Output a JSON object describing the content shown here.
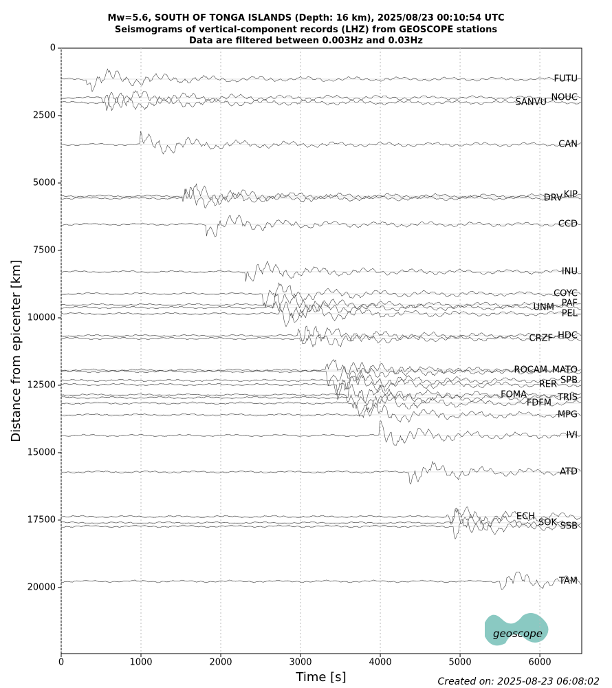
{
  "chart_data": {
    "type": "seismogram",
    "title": [
      "Mw=5.6, SOUTH OF TONGA ISLANDS (Depth: 16 km), 2025/08/23 00:10:54 UTC",
      "Seismograms of vertical-component records (LHZ) from GEOSCOPE stations",
      "Data are filtered between 0.003Hz and 0.03Hz"
    ],
    "x_label": "Time [s]",
    "y_label": "Distance from epicenter [km]",
    "xlim": [
      0,
      6525
    ],
    "xticks": [
      0,
      1000,
      2000,
      3000,
      4000,
      5000,
      6000
    ],
    "ylim": [
      22450,
      0
    ],
    "yticks": [
      0,
      2500,
      5000,
      7500,
      10000,
      12500,
      15000,
      17500,
      20000
    ],
    "grid": true,
    "color": "#444444",
    "stations": [
      "FUTU",
      "NOUC",
      "SANVU",
      "CAN",
      "KIP",
      "DRV",
      "CCD",
      "INU",
      "COYC",
      "PAF",
      "UNM",
      "PEL",
      "HDC",
      "CRZF",
      "MATO",
      "ROCAM",
      "SPB",
      "RER",
      "FOMA",
      "TRIS",
      "FDFM",
      "MPG",
      "IVI",
      "ATD",
      "ECH",
      "SOK",
      "SSB",
      "TAM"
    ],
    "values": [
      1148,
      1837,
      2015,
      3571,
      5485,
      5561,
      6531,
      8291,
      9107,
      9515,
      9617,
      9847,
      10663,
      10765,
      11939,
      11990,
      12321,
      12474,
      12857,
      12959,
      13163,
      13597,
      14362,
      15714,
      17372,
      17602,
      17730,
      19770
    ]
  },
  "footer": "Created on: 2025-08-23 06:08:02",
  "logo": "geoscope"
}
